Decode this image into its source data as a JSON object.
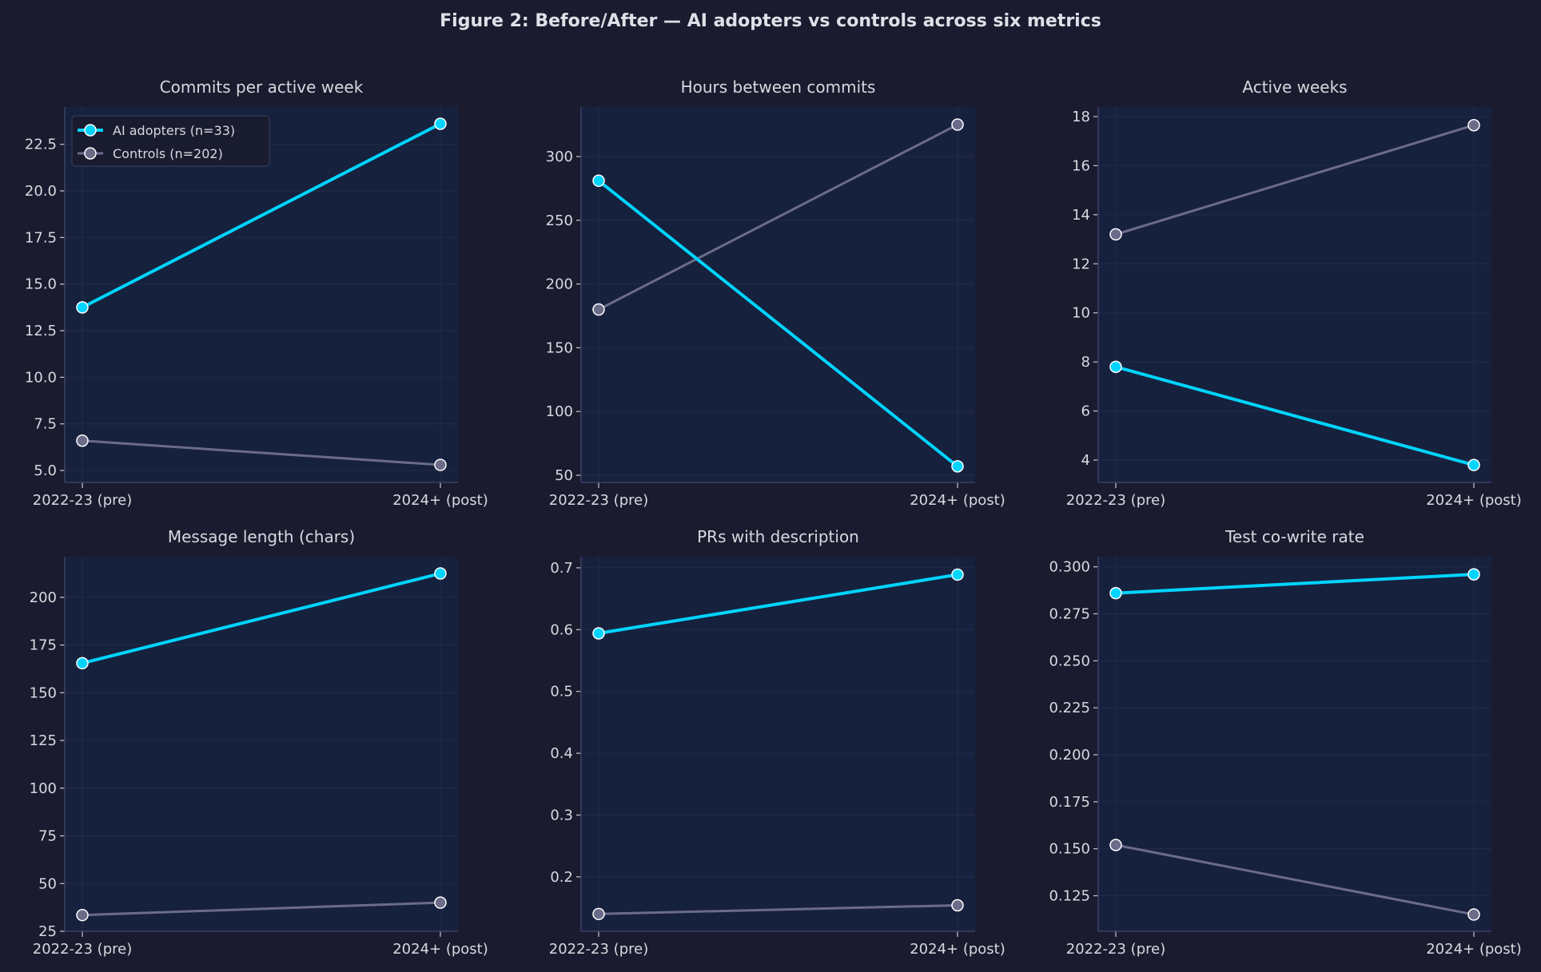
{
  "title": "Figure 2: Before/After — AI adopters vs controls across six metrics",
  "colors": {
    "background": "#1a1b2e",
    "axes_bg": "#16213e",
    "ai": "#00d4ff",
    "controls": "#6b6b8a",
    "grid": "#252a48",
    "spine": "#3d3f63",
    "text": "#d8d8e0"
  },
  "legend": {
    "placement": "upper-left",
    "entries": [
      "AI adopters (n=33)",
      "Controls (n=202)"
    ]
  },
  "chart_data": [
    {
      "type": "line",
      "title": "Commits per active week",
      "categories": [
        "2022-23 (pre)",
        "2024+ (post)"
      ],
      "ylim": [
        4.36,
        24.5
      ],
      "yticks": [
        5.0,
        7.5,
        10.0,
        12.5,
        15.0,
        17.5,
        20.0,
        22.5
      ],
      "ytick_labels": [
        "5.0",
        "7.5",
        "10.0",
        "12.5",
        "15.0",
        "17.5",
        "20.0",
        "22.5"
      ],
      "series": [
        {
          "name": "AI adopters (n=33)",
          "values": [
            13.75,
            23.6
          ]
        },
        {
          "name": "Controls (n=202)",
          "values": [
            6.6,
            5.3
          ]
        }
      ],
      "grid": true,
      "legend": true
    },
    {
      "type": "line",
      "title": "Hours between commits",
      "categories": [
        "2022-23 (pre)",
        "2024+ (post)"
      ],
      "ylim": [
        44.4,
        338.8
      ],
      "yticks": [
        50,
        100,
        150,
        200,
        250,
        300
      ],
      "ytick_labels": [
        "50",
        "100",
        "150",
        "200",
        "250",
        "300"
      ],
      "series": [
        {
          "name": "AI adopters (n=33)",
          "values": [
            281,
            57
          ]
        },
        {
          "name": "Controls (n=202)",
          "values": [
            180,
            325
          ]
        }
      ],
      "grid": true,
      "legend": false
    },
    {
      "type": "line",
      "title": "Active weeks",
      "categories": [
        "2022-23 (pre)",
        "2024+ (post)"
      ],
      "ylim": [
        3.09,
        18.39
      ],
      "yticks": [
        4,
        6,
        8,
        10,
        12,
        14,
        16,
        18
      ],
      "ytick_labels": [
        "4",
        "6",
        "8",
        "10",
        "12",
        "14",
        "16",
        "18"
      ],
      "series": [
        {
          "name": "AI adopters (n=33)",
          "values": [
            7.8,
            3.8
          ]
        },
        {
          "name": "Controls (n=202)",
          "values": [
            13.2,
            17.65
          ]
        }
      ],
      "grid": true,
      "legend": false
    },
    {
      "type": "line",
      "title": "Message length (chars)",
      "categories": [
        "2022-23 (pre)",
        "2024+ (post)"
      ],
      "ylim": [
        25,
        221.3
      ],
      "yticks": [
        25,
        50,
        75,
        100,
        125,
        150,
        175,
        200
      ],
      "ytick_labels": [
        "25",
        "50",
        "75",
        "100",
        "125",
        "150",
        "175",
        "200"
      ],
      "series": [
        {
          "name": "AI adopters (n=33)",
          "values": [
            165.5,
            212.5
          ]
        },
        {
          "name": "Controls (n=202)",
          "values": [
            33.5,
            40
          ]
        }
      ],
      "grid": true,
      "legend": false
    },
    {
      "type": "line",
      "title": "PRs with description",
      "categories": [
        "2022-23 (pre)",
        "2024+ (post)"
      ],
      "ylim": [
        0.112,
        0.718
      ],
      "yticks": [
        0.2,
        0.3,
        0.4,
        0.5,
        0.6,
        0.7
      ],
      "ytick_labels": [
        "0.2",
        "0.3",
        "0.4",
        "0.5",
        "0.6",
        "0.7"
      ],
      "series": [
        {
          "name": "AI adopters (n=33)",
          "values": [
            0.594,
            0.689
          ]
        },
        {
          "name": "Controls (n=202)",
          "values": [
            0.14,
            0.154
          ]
        }
      ],
      "grid": true,
      "legend": false
    },
    {
      "type": "line",
      "title": "Test co-write rate",
      "categories": [
        "2022-23 (pre)",
        "2024+ (post)"
      ],
      "ylim": [
        0.1061,
        0.3054
      ],
      "yticks": [
        0.125,
        0.15,
        0.175,
        0.2,
        0.225,
        0.25,
        0.275,
        0.3
      ],
      "ytick_labels": [
        "0.125",
        "0.150",
        "0.175",
        "0.200",
        "0.225",
        "0.250",
        "0.275",
        "0.300"
      ],
      "series": [
        {
          "name": "AI adopters (n=33)",
          "values": [
            0.286,
            0.296
          ]
        },
        {
          "name": "Controls (n=202)",
          "values": [
            0.152,
            0.115
          ]
        }
      ],
      "grid": true,
      "legend": false
    }
  ]
}
